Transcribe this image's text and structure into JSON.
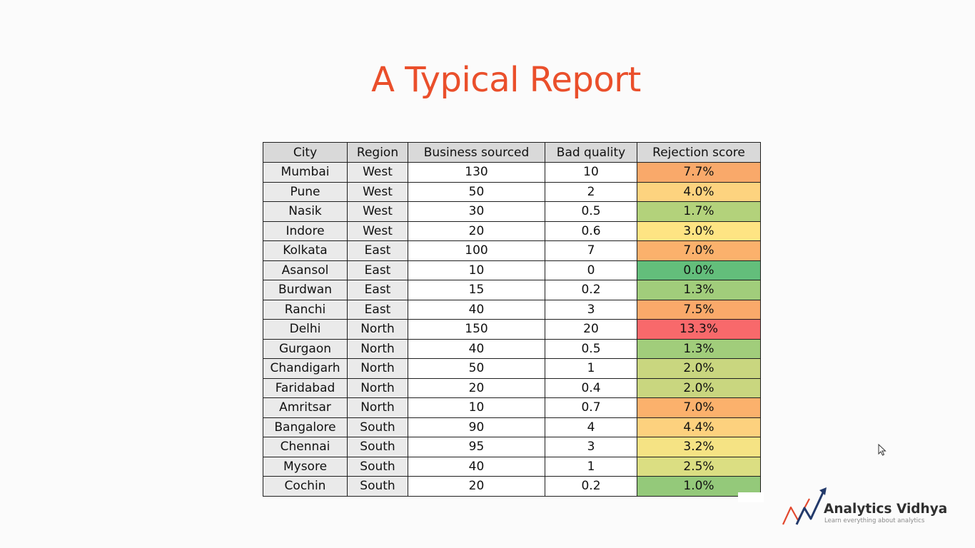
{
  "slide": {
    "title": "A Typical Report"
  },
  "table": {
    "headers": [
      "City",
      "Region",
      "Business sourced",
      "Bad quality",
      "Rejection score"
    ],
    "rows": [
      {
        "city": "Mumbai",
        "region": "West",
        "business": "130",
        "bad": "10",
        "rejection": "7.7%",
        "color": "#f9a96a"
      },
      {
        "city": "Pune",
        "region": "West",
        "business": "50",
        "bad": "2",
        "rejection": "4.0%",
        "color": "#fdd37f"
      },
      {
        "city": "Nasik",
        "region": "West",
        "business": "30",
        "bad": "0.5",
        "rejection": "1.7%",
        "color": "#b3d27b"
      },
      {
        "city": "Indore",
        "region": "West",
        "business": "20",
        "bad": "0.6",
        "rejection": "3.0%",
        "color": "#fee483"
      },
      {
        "city": "Kolkata",
        "region": "East",
        "business": "100",
        "bad": "7",
        "rejection": "7.0%",
        "color": "#fbb16c"
      },
      {
        "city": "Asansol",
        "region": "East",
        "business": "10",
        "bad": "0",
        "rejection": "0.0%",
        "color": "#63be7b"
      },
      {
        "city": "Burdwan",
        "region": "East",
        "business": "15",
        "bad": "0.2",
        "rejection": "1.3%",
        "color": "#a1cd7b"
      },
      {
        "city": "Ranchi",
        "region": "East",
        "business": "40",
        "bad": "3",
        "rejection": "7.5%",
        "color": "#faa96a"
      },
      {
        "city": "Delhi",
        "region": "North",
        "business": "150",
        "bad": "20",
        "rejection": "13.3%",
        "color": "#f8696b"
      },
      {
        "city": "Gurgaon",
        "region": "North",
        "business": "40",
        "bad": "0.5",
        "rejection": "1.3%",
        "color": "#a1cd7b"
      },
      {
        "city": "Chandigarh",
        "region": "North",
        "business": "50",
        "bad": "1",
        "rejection": "2.0%",
        "color": "#c9d67f"
      },
      {
        "city": "Faridabad",
        "region": "North",
        "business": "20",
        "bad": "0.4",
        "rejection": "2.0%",
        "color": "#c9d67f"
      },
      {
        "city": "Amritsar",
        "region": "North",
        "business": "10",
        "bad": "0.7",
        "rejection": "7.0%",
        "color": "#fbb16c"
      },
      {
        "city": "Bangalore",
        "region": "South",
        "business": "90",
        "bad": "4",
        "rejection": "4.4%",
        "color": "#fdd17e"
      },
      {
        "city": "Chennai",
        "region": "South",
        "business": "95",
        "bad": "3",
        "rejection": "3.2%",
        "color": "#f5e384"
      },
      {
        "city": "Mysore",
        "region": "South",
        "business": "40",
        "bad": "1",
        "rejection": "2.5%",
        "color": "#dbde82"
      },
      {
        "city": "Cochin",
        "region": "South",
        "business": "20",
        "bad": "0.2",
        "rejection": "1.0%",
        "color": "#94c97a"
      }
    ]
  },
  "logo": {
    "name": "Analytics Vidhya",
    "tagline": "Learn everything about analytics",
    "icon": "analytics-vidhya-logo-mark"
  },
  "cursor": {
    "icon": "mouse-pointer-icon"
  }
}
